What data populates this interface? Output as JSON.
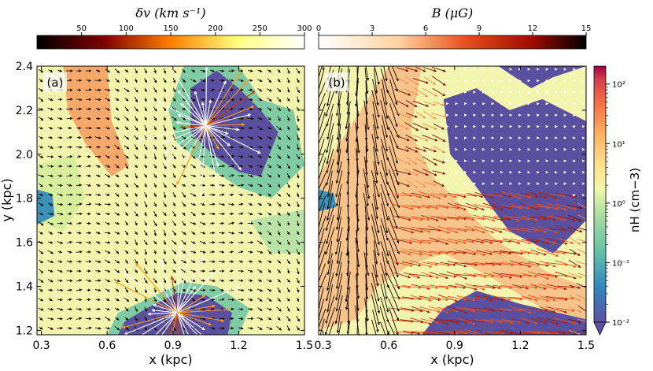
{
  "chart_data": [
    {
      "type": "heatmap",
      "panel_label": "(a)",
      "overlay": "velocity-perturbation arrows",
      "xlabel": "x (kpc)",
      "ylabel": "y (kpc)",
      "xlim": [
        0.28,
        1.5
      ],
      "ylim": [
        1.18,
        2.4
      ],
      "xticks": [
        "0.3",
        "0.6",
        "0.9",
        "1.2",
        "1.5"
      ],
      "yticks": [
        "1.2",
        "1.4",
        "1.6",
        "1.8",
        "2.0",
        "2.2",
        "2.4"
      ],
      "colorbar": {
        "label_text": "δv (km s⁻¹)",
        "range": [
          0,
          300
        ],
        "ticks": [
          "50",
          "100",
          "150",
          "200",
          "250",
          "300"
        ],
        "colormap": "afmhot",
        "position": "top"
      },
      "hot_regions": [
        {
          "x": 0.92,
          "y": 1.28,
          "r": 0.14,
          "label": "bubble"
        },
        {
          "x": 1.05,
          "y": 2.13,
          "r": 0.12,
          "label": "bubble"
        }
      ]
    },
    {
      "type": "heatmap",
      "panel_label": "(b)",
      "overlay": "magnetic-field arrows",
      "xlabel": "x (kpc)",
      "xlim": [
        0.28,
        1.5
      ],
      "ylim": [
        1.18,
        2.4
      ],
      "xticks": [
        "0.3",
        "0.6",
        "0.9",
        "1.2",
        "1.5"
      ],
      "colorbar": {
        "label_text": "B (μG)",
        "range": [
          0,
          15
        ],
        "ticks": [
          "0",
          "3",
          "6",
          "9",
          "12",
          "15"
        ],
        "colormap": "gist_heat_r",
        "position": "top"
      }
    },
    {
      "type": "colorbar",
      "quantity": "n_H (cm⁻³)",
      "label_text": "nH (cm−3)",
      "scale": "log",
      "range": [
        0.01,
        200
      ],
      "ticks": [
        "10⁻²",
        "10⁻¹",
        "10⁰",
        "10¹",
        "10²"
      ],
      "colormap": "Spectral_r",
      "position": "right",
      "extend": "min"
    }
  ],
  "colors": {
    "low_density": "#5b4fa0",
    "mid_density": "#f4f5ad",
    "high_density": "#e8704a"
  }
}
